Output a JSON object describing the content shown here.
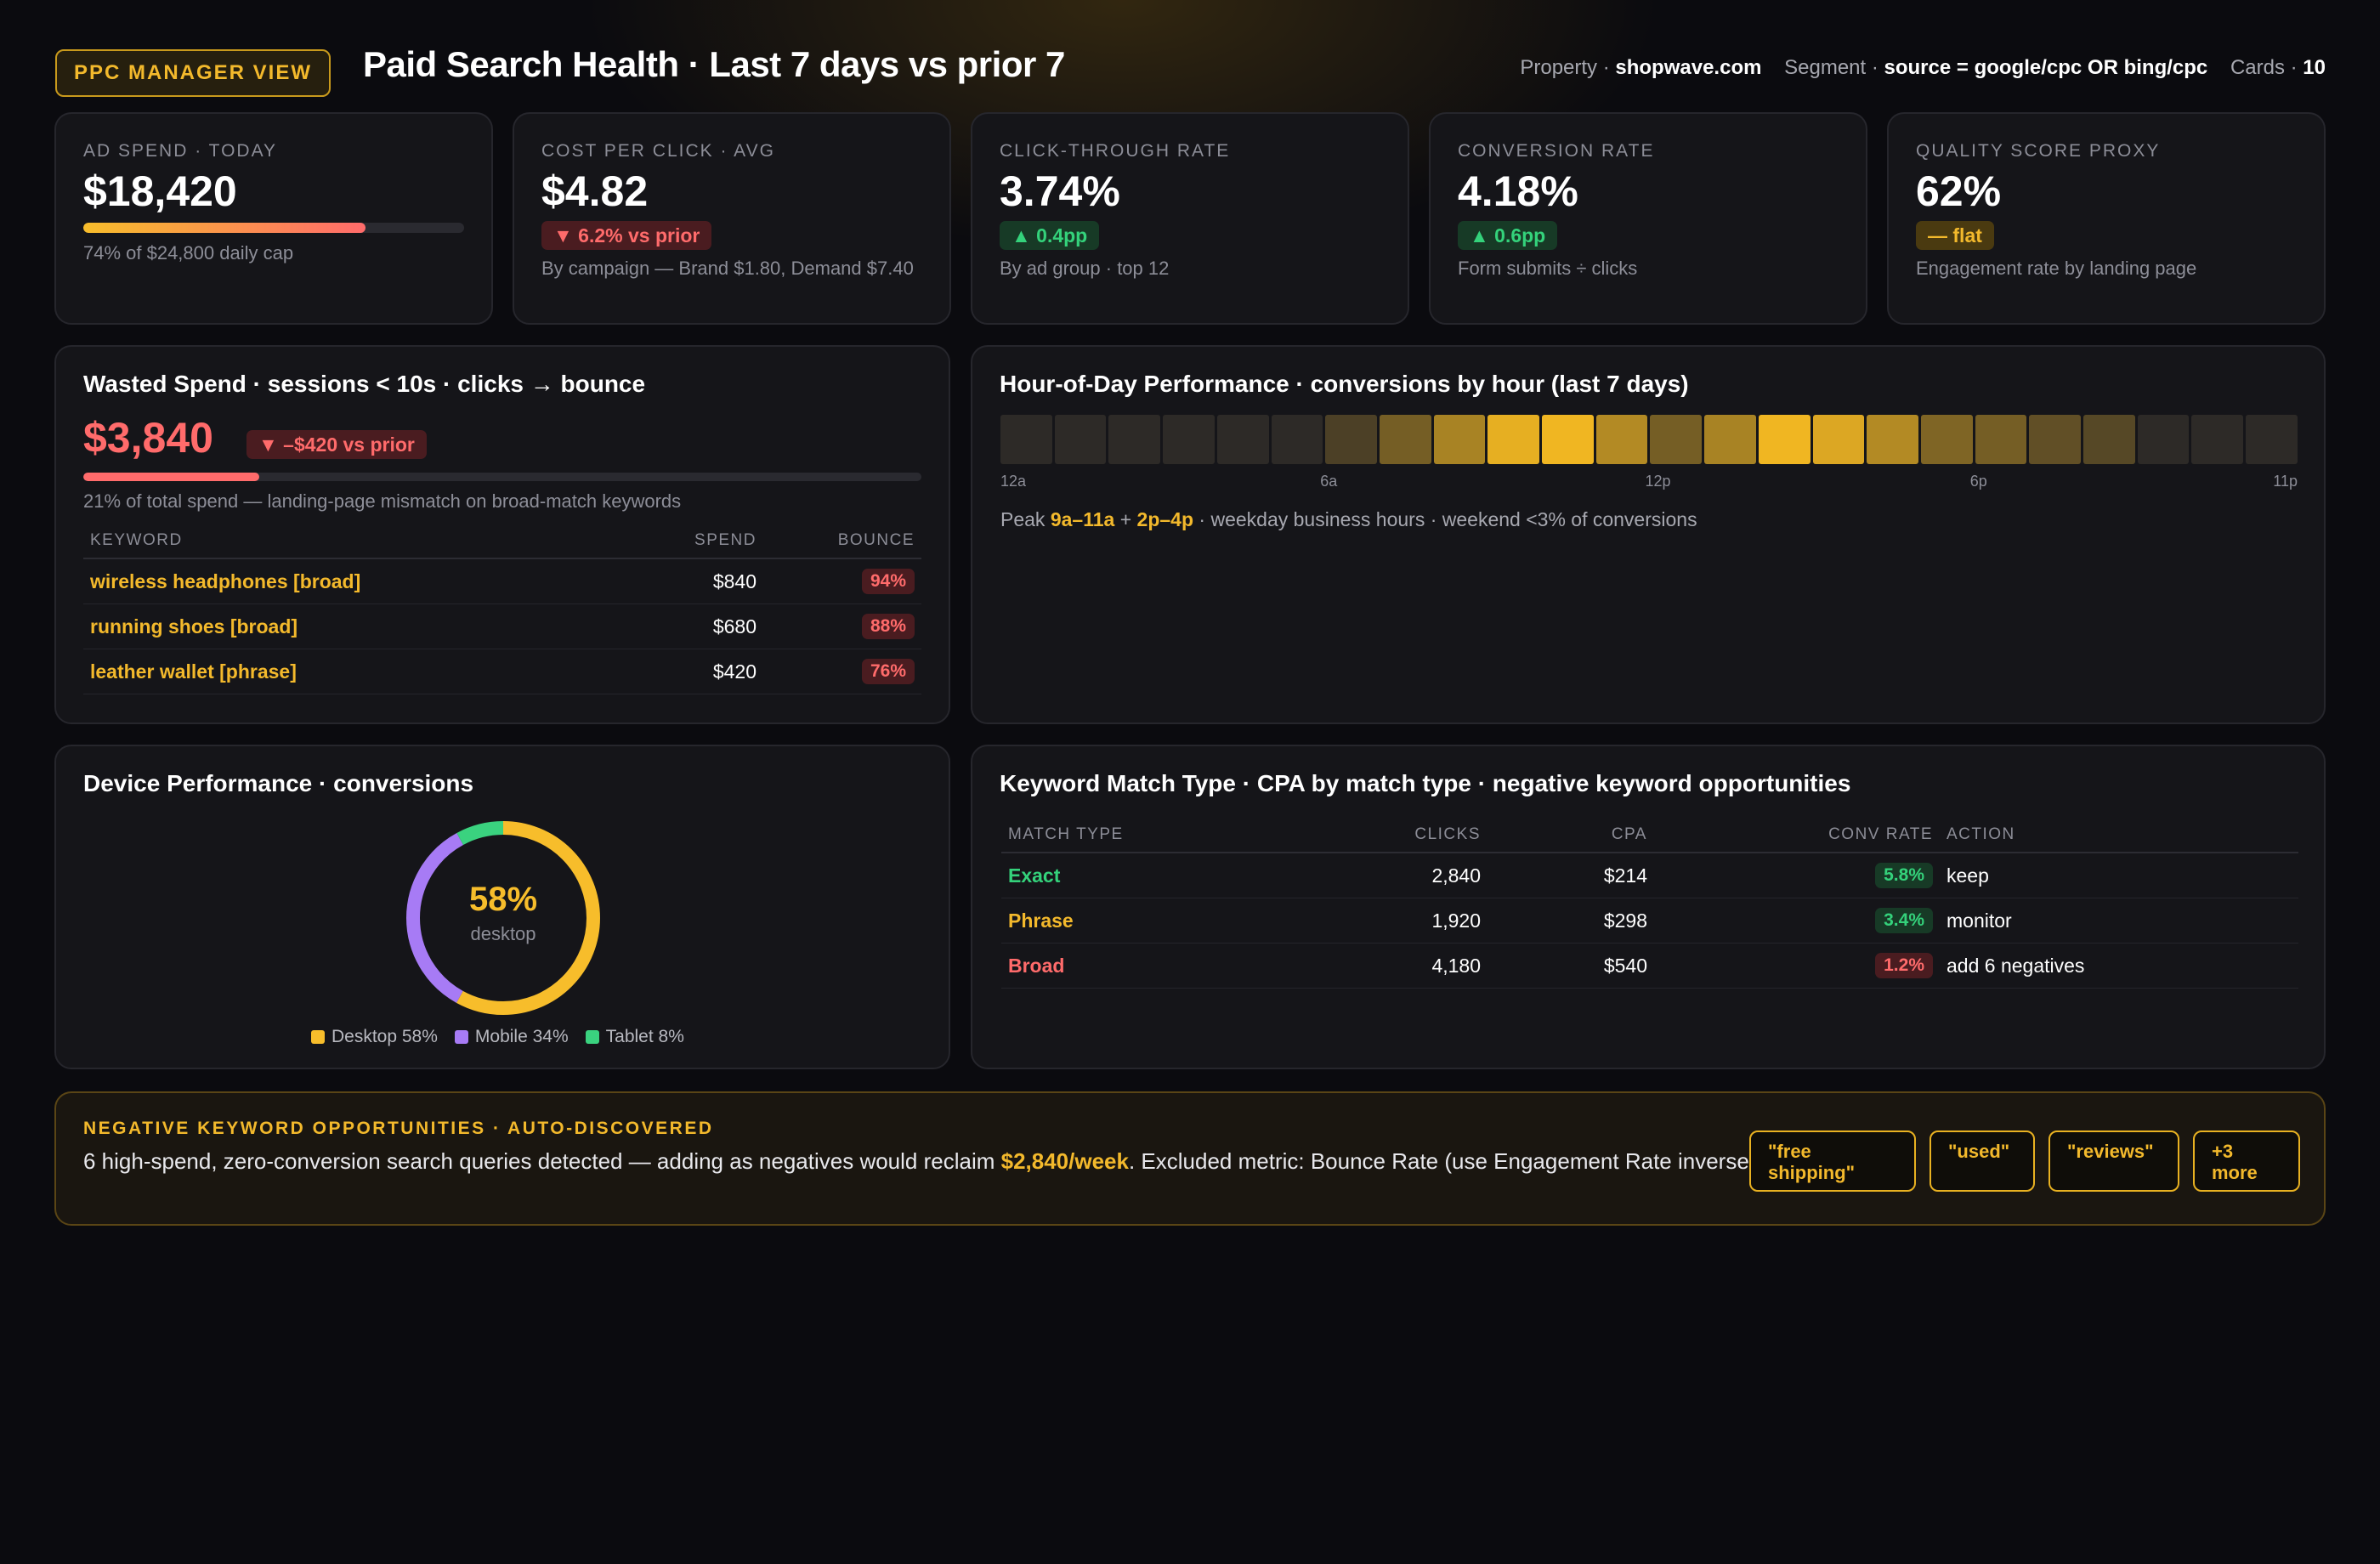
{
  "header": {
    "view_badge": "PPC MANAGER VIEW",
    "title": "Paid Search Health · Last 7 days vs prior 7",
    "property_label": "Property ·",
    "property_value": "shopwave.com",
    "segment_label": "Segment ·",
    "segment_value": "source = google/cpc OR bing/cpc",
    "cards_label": "Cards ·",
    "cards_value": "10"
  },
  "kpis": [
    {
      "label": "AD SPEND · TODAY",
      "value": "$18,420",
      "progress": 0.74,
      "sub": "74% of $24,800 daily cap"
    },
    {
      "label": "COST PER CLICK · AVG",
      "value": "$4.82",
      "delta": "▼ 6.2% vs prior",
      "sub": "By campaign — Brand $1.80, Demand $7.40"
    },
    {
      "label": "CLICK-THROUGH RATE",
      "value": "3.74%",
      "delta": "▲ 0.4pp",
      "sub": "By ad group · top 12"
    },
    {
      "label": "CONVERSION RATE",
      "value": "4.18%",
      "delta": "▲ 0.6pp",
      "sub": "Form submits ÷ clicks"
    },
    {
      "label": "QUALITY SCORE PROXY",
      "value": "62%",
      "delta": "— flat",
      "sub": "Engagement rate by landing page"
    }
  ],
  "wasted": {
    "title": "Wasted Spend · sessions < 10s · clicks → bounce",
    "value": "$3,840",
    "delta": "▼ –$420 vs prior",
    "share": 0.21,
    "sub": "21% of total spend — landing-page mismatch on broad-match keywords",
    "columns": [
      "KEYWORD",
      "SPEND",
      "BOUNCE"
    ],
    "rows": [
      {
        "keyword": "wireless headphones [broad]",
        "spend": "$840",
        "bounce": "94%"
      },
      {
        "keyword": "running shoes [broad]",
        "spend": "$680",
        "bounce": "88%"
      },
      {
        "keyword": "leather wallet [phrase]",
        "spend": "$420",
        "bounce": "76%"
      }
    ]
  },
  "hourly": {
    "title": "Hour-of-Day Performance · conversions by hour (last 7 days)",
    "intensity": [
      0.05,
      0.05,
      0.05,
      0.05,
      0.05,
      0.05,
      0.2,
      0.4,
      0.65,
      0.95,
      1.0,
      0.7,
      0.4,
      0.65,
      1.0,
      0.9,
      0.7,
      0.45,
      0.4,
      0.3,
      0.25,
      0.05,
      0.05,
      0.05
    ],
    "axis": [
      {
        "label": "12a",
        "hour": 0
      },
      {
        "label": "6a",
        "hour": 6
      },
      {
        "label": "12p",
        "hour": 12
      },
      {
        "label": "6p",
        "hour": 18
      },
      {
        "label": "11p",
        "hour": 23
      }
    ],
    "note_prefix": "Peak ",
    "note_peak1": "9a–11a",
    "note_plus": " + ",
    "note_peak2": "2p–4p",
    "note_suffix": " · weekday business hours · weekend <3% of conversions"
  },
  "device": {
    "title": "Device Performance · conversions",
    "center_value": "58%",
    "center_label": "desktop",
    "segments": [
      {
        "name": "Desktop",
        "share": 58,
        "color": "#f7bd2b",
        "legend": "Desktop 58%"
      },
      {
        "name": "Mobile",
        "share": 34,
        "color": "#a77bf5",
        "legend": "Mobile 34%"
      },
      {
        "name": "Tablet",
        "share": 8,
        "color": "#3ad27f",
        "legend": "Tablet 8%"
      }
    ]
  },
  "matchtype": {
    "title": "Keyword Match Type · CPA by match type · negative keyword opportunities",
    "columns": [
      "MATCH TYPE",
      "CLICKS",
      "CPA",
      "CONV RATE",
      "ACTION"
    ],
    "rows": [
      {
        "type": "Exact",
        "color": "#34d27b",
        "clicks": "2,840",
        "cpa": "$214",
        "conv": "5.8%",
        "conv_tone": "green",
        "action": "keep"
      },
      {
        "type": "Phrase",
        "color": "#f3b92c",
        "clicks": "1,920",
        "cpa": "$298",
        "conv": "3.4%",
        "conv_tone": "green",
        "action": "monitor"
      },
      {
        "type": "Broad",
        "color": "#ff6b6b",
        "clicks": "4,180",
        "cpa": "$540",
        "conv": "1.2%",
        "conv_tone": "red",
        "action": "add 6 negatives"
      }
    ]
  },
  "negatives": {
    "label": "NEGATIVE KEYWORD OPPORTUNITIES · AUTO-DISCOVERED",
    "text_before": "6 high-spend, zero-conversion search queries detected — adding as negatives would reclaim ",
    "text_highlight": "$2,840/week",
    "text_after": ". Excluded metric: Bounce Rate (use Engagement Rate inverse).",
    "chips": [
      "\"free shipping\"",
      "\"used\"",
      "\"reviews\"",
      "+3 more"
    ]
  },
  "colors": {
    "accent": "#f3b92c",
    "negative": "#ff6b6b",
    "positive": "#34d27b",
    "heat_base": "#232327",
    "heat_peak": "#f0b622"
  }
}
